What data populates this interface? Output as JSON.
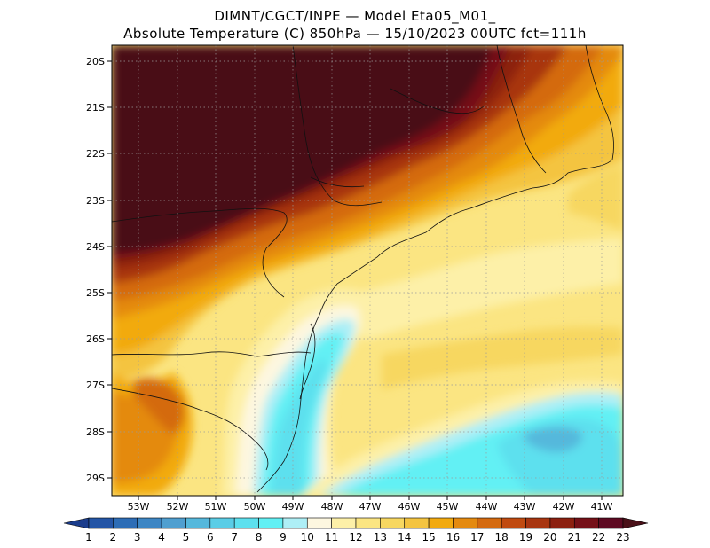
{
  "header": {
    "line1": "DIMNT/CGCT/INPE —  Model Eta05_M01_",
    "line2": "Absolute Temperature (C) 850hPa —  15/10/2023 00UTC fct=111h"
  },
  "map": {
    "lat_labels": [
      "20S",
      "21S",
      "22S",
      "23S",
      "24S",
      "25S",
      "26S",
      "27S",
      "28S",
      "29S"
    ],
    "lon_labels": [
      "53W",
      "52W",
      "51W",
      "50W",
      "49W",
      "48W",
      "47W",
      "46W",
      "45W",
      "44W",
      "43W",
      "42W",
      "41W"
    ]
  },
  "colorbar": {
    "labels": [
      "1",
      "2",
      "3",
      "4",
      "5",
      "6",
      "7",
      "8",
      "9",
      "10",
      "11",
      "12",
      "13",
      "14",
      "15",
      "16",
      "17",
      "18",
      "19",
      "20",
      "21",
      "22",
      "23"
    ],
    "colors": [
      "#1a3c8c",
      "#2455a6",
      "#2d6db6",
      "#3d86c4",
      "#4f9fd0",
      "#55b8dc",
      "#5acde6",
      "#5de0ee",
      "#62f0f4",
      "#aeeff6",
      "#fdf7e0",
      "#fdf0a8",
      "#fbe582",
      "#f7d760",
      "#f4c440",
      "#f2aa10",
      "#e48a10",
      "#d46a10",
      "#c04a10",
      "#a83510",
      "#8c2010",
      "#751018",
      "#5e0a22",
      "#4a1018"
    ]
  }
}
